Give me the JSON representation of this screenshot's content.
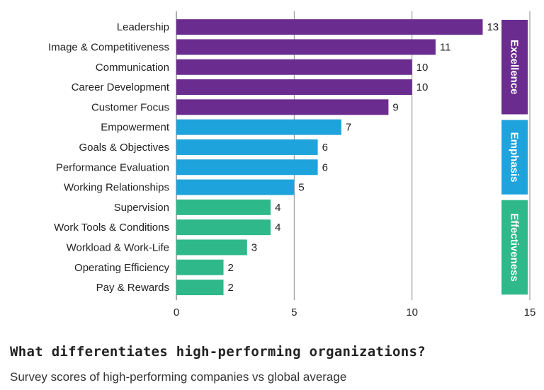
{
  "chart_data": {
    "type": "bar",
    "orientation": "horizontal",
    "title": "What differentiates high-performing organizations?",
    "subtitle": "Survey scores of high-performing companies vs global average",
    "categories": [
      "Leadership",
      "Image & Competitiveness",
      "Communication",
      "Career Development",
      "Customer Focus",
      "Empowerment",
      "Goals & Objectives",
      "Performance Evaluation",
      "Working Relationships",
      "Supervision",
      "Work Tools & Conditions",
      "Workload & Work-Life",
      "Operating Efficiency",
      "Pay & Rewards"
    ],
    "values": [
      13,
      11,
      10,
      10,
      9,
      7,
      6,
      6,
      5,
      4,
      4,
      3,
      2,
      2
    ],
    "xlim": [
      0,
      15
    ],
    "xticks": [
      0,
      5,
      10,
      15
    ],
    "xgrid": true,
    "groups": [
      {
        "name": "Excellence",
        "color": "#6b2c8f",
        "categories": [
          "Leadership",
          "Image & Competitiveness",
          "Communication",
          "Career Development",
          "Customer Focus"
        ]
      },
      {
        "name": "Emphasis",
        "color": "#1fa3dc",
        "categories": [
          "Empowerment",
          "Goals & Objectives",
          "Performance Evaluation",
          "Working Relationships"
        ]
      },
      {
        "name": "Effectiveness",
        "color": "#2fb98a",
        "categories": [
          "Supervision",
          "Work Tools & Conditions",
          "Workload & Work-Life",
          "Operating Efficiency",
          "Pay & Rewards"
        ]
      }
    ]
  }
}
